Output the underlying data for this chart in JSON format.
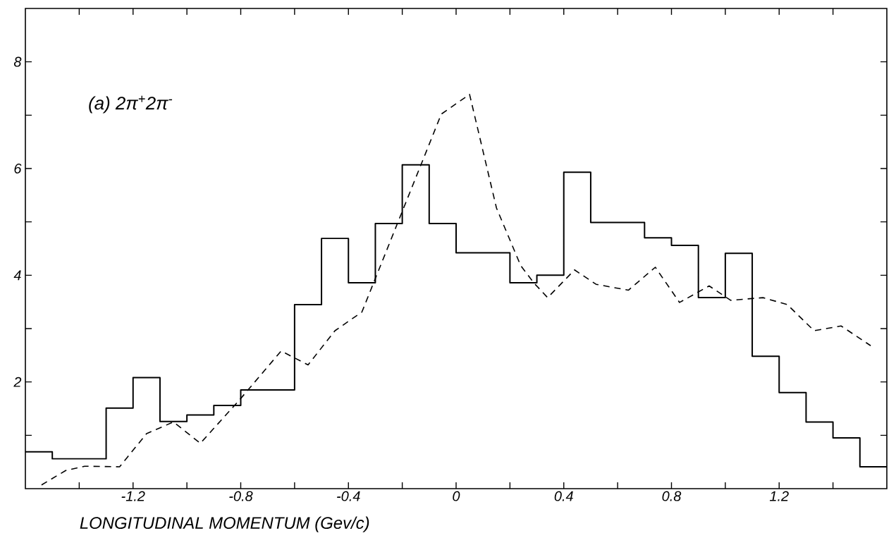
{
  "chart_data": {
    "type": "histogram",
    "xlabel": "LONGITUDINAL MOMENTUM (Gev/c)",
    "annotations": [
      "(a) 2π$^{+}$2π$^{-}$"
    ],
    "xlim": [
      -1.6,
      1.6
    ],
    "ylim": [
      0,
      9
    ],
    "xticks": [
      {
        "value": -1.4,
        "label": null
      },
      -1.2,
      {
        "value": -1.0,
        "label": null
      },
      -0.8,
      {
        "value": -0.6,
        "label": null
      },
      -0.4,
      {
        "value": -0.2,
        "label": null
      },
      0,
      {
        "value": 0.2,
        "label": null
      },
      0.4,
      {
        "value": 0.6,
        "label": null
      },
      0.8,
      {
        "value": 1.0,
        "label": null
      },
      1.2,
      {
        "value": 1.4,
        "label": null
      }
    ],
    "yticks": [
      {
        "value": 1,
        "label": null
      },
      2,
      {
        "value": 3,
        "label": null
      },
      4,
      {
        "value": 5,
        "label": null
      },
      6,
      {
        "value": 7,
        "label": null
      },
      8
    ],
    "series": [
      {
        "color": "#000000",
        "bins": [
          -1.6,
          -1.5,
          -1.4,
          -1.3,
          -1.2,
          -1.1,
          -1.0,
          -0.9,
          -0.8,
          -0.7,
          -0.6,
          -0.5,
          -0.4,
          -0.3,
          -0.2,
          -0.1,
          0.0,
          0.1,
          0.2,
          0.3,
          0.4,
          0.5,
          0.6,
          0.7,
          0.8,
          0.9,
          1.0,
          1.1,
          1.2,
          1.3,
          1.4,
          1.5,
          1.6
        ],
        "values": [
          0.69,
          0.56,
          0.56,
          1.51,
          2.08,
          1.26,
          1.38,
          1.56,
          1.85,
          1.85,
          3.45,
          4.69,
          3.86,
          4.97,
          6.07,
          4.97,
          4.42,
          4.42,
          3.86,
          4.0,
          5.93,
          4.99,
          4.99,
          4.7,
          4.56,
          3.58,
          4.41,
          2.48,
          1.8,
          1.25,
          0.95,
          0.41
        ]
      },
      {
        "type": "line",
        "color": "#000000",
        "line_style": "dashed",
        "marker": "none",
        "x": [
          -1.54,
          -1.45,
          -1.38,
          -1.25,
          -1.15,
          -1.05,
          -0.95,
          -0.8,
          -0.65,
          -0.55,
          -0.45,
          -0.35,
          -0.055,
          0.05,
          0.15,
          0.24,
          0.29,
          0.34,
          0.44,
          0.52,
          0.64,
          0.74,
          0.83,
          0.94,
          1.02,
          1.14,
          1.23,
          1.33,
          1.43,
          1.54
        ],
        "values": [
          0.07,
          0.34,
          0.42,
          0.41,
          1.03,
          1.25,
          0.85,
          1.69,
          2.58,
          2.32,
          2.96,
          3.31,
          7.02,
          7.39,
          5.26,
          4.18,
          3.85,
          3.58,
          4.1,
          3.83,
          3.72,
          4.15,
          3.49,
          3.8,
          3.53,
          3.58,
          3.45,
          2.96,
          3.05,
          2.68
        ]
      }
    ]
  }
}
